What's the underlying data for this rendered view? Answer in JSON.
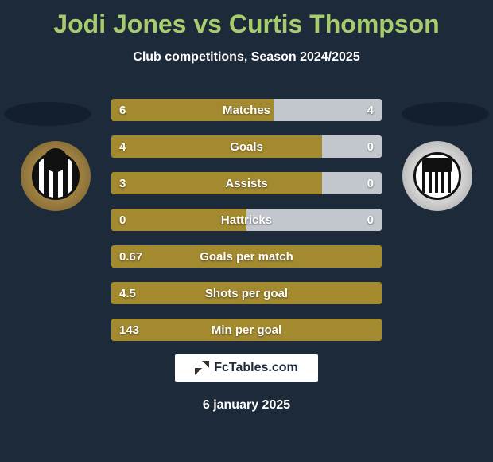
{
  "header": {
    "title": "Jodi Jones vs Curtis Thompson",
    "title_color": "#a7cc6c",
    "subtitle": "Club competitions, Season 2024/2025"
  },
  "colors": {
    "background": "#1c2a3a",
    "bar_left": "#a38a2f",
    "bar_right": "#c2c7cd",
    "bar_track": "#3a3f44",
    "text": "#ffffff"
  },
  "players": {
    "left_badge_desc": "Notts County crest",
    "right_badge_desc": "Grimsby Town crest"
  },
  "stats": [
    {
      "label": "Matches",
      "left_value": "6",
      "right_value": "4",
      "left_pct": 60,
      "right_pct": 40
    },
    {
      "label": "Goals",
      "left_value": "4",
      "right_value": "0",
      "left_pct": 78,
      "right_pct": 22
    },
    {
      "label": "Assists",
      "left_value": "3",
      "right_value": "0",
      "left_pct": 78,
      "right_pct": 22
    },
    {
      "label": "Hattricks",
      "left_value": "0",
      "right_value": "0",
      "left_pct": 50,
      "right_pct": 50
    },
    {
      "label": "Goals per match",
      "left_value": "0.67",
      "right_value": "",
      "left_pct": 100,
      "right_pct": 0
    },
    {
      "label": "Shots per goal",
      "left_value": "4.5",
      "right_value": "",
      "left_pct": 100,
      "right_pct": 0
    },
    {
      "label": "Min per goal",
      "left_value": "143",
      "right_value": "",
      "left_pct": 100,
      "right_pct": 0
    }
  ],
  "footer": {
    "brand_text": "FcTables.com",
    "date": "6 january 2025"
  }
}
